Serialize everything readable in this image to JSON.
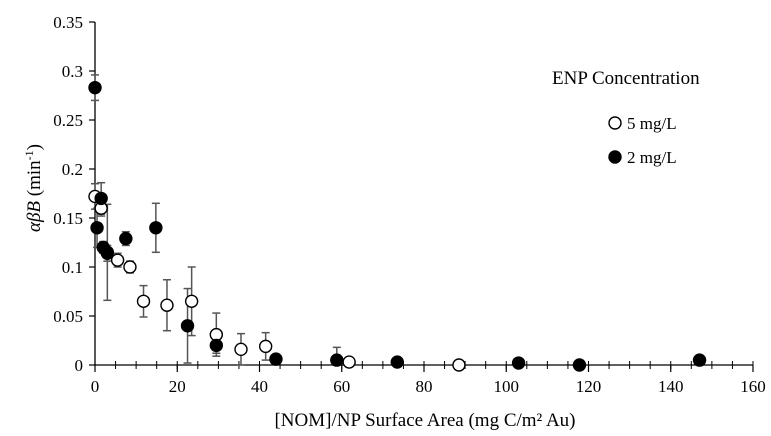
{
  "chart_data": {
    "type": "scatter",
    "xlabel": "[NOM]/NP Surface Area (mg C/m² Au)",
    "ylabel": {
      "prefix": "αβB",
      "unit": " (min",
      "sup": "-1",
      "suffix": ")"
    },
    "xlim": [
      0,
      160
    ],
    "ylim": [
      0,
      0.35
    ],
    "x_ticks": [
      "0",
      "20",
      "40",
      "60",
      "80",
      "100",
      "120",
      "140",
      "160"
    ],
    "y_ticks": [
      "0",
      "0.05",
      "0.1",
      "0.15",
      "0.2",
      "0.25",
      "0.3",
      "0.35"
    ],
    "grid": false,
    "legend": {
      "title": "ENP Concentration",
      "position": "top-right"
    },
    "series": [
      {
        "name": "5 mg/L",
        "marker": "open-circle",
        "color": "#000000",
        "points": [
          {
            "x": 0.0,
            "y": 0.172,
            "err": 0.013
          },
          {
            "x": 1.5,
            "y": 0.16,
            "err": 0.008
          },
          {
            "x": 3.0,
            "y": 0.114,
            "err": 0.008
          },
          {
            "x": 5.5,
            "y": 0.107,
            "err": 0.007
          },
          {
            "x": 8.5,
            "y": 0.1,
            "err": 0.006
          },
          {
            "x": 11.8,
            "y": 0.065,
            "err": 0.016
          },
          {
            "x": 17.5,
            "y": 0.061,
            "err": 0.026
          },
          {
            "x": 23.5,
            "y": 0.065,
            "err": 0.035
          },
          {
            "x": 29.5,
            "y": 0.031,
            "err": 0.022
          },
          {
            "x": 35.5,
            "y": 0.016,
            "err": 0.016
          },
          {
            "x": 41.5,
            "y": 0.019,
            "err": 0.014
          },
          {
            "x": 61.8,
            "y": 0.003,
            "err": 0.0
          },
          {
            "x": 88.5,
            "y": 0.0,
            "err": 0.0
          }
        ]
      },
      {
        "name": "2 mg/L",
        "marker": "filled-circle",
        "color": "#000000",
        "points": [
          {
            "x": 0.0,
            "y": 0.283,
            "err": 0.013
          },
          {
            "x": 0.5,
            "y": 0.14,
            "err": 0.02
          },
          {
            "x": 1.5,
            "y": 0.17,
            "err": 0.016
          },
          {
            "x": 2.0,
            "y": 0.12,
            "err": 0.006
          },
          {
            "x": 3.0,
            "y": 0.115,
            "err": 0.049
          },
          {
            "x": 7.5,
            "y": 0.129,
            "err": 0.007
          },
          {
            "x": 14.8,
            "y": 0.14,
            "err": 0.025
          },
          {
            "x": 22.5,
            "y": 0.04,
            "err": 0.038
          },
          {
            "x": 29.5,
            "y": 0.02,
            "err": 0.008
          },
          {
            "x": 44.0,
            "y": 0.006,
            "err": 0.0
          },
          {
            "x": 58.8,
            "y": 0.005,
            "err": 0.013
          },
          {
            "x": 73.5,
            "y": 0.003,
            "err": 0.0
          },
          {
            "x": 103.0,
            "y": 0.002,
            "err": 0.0
          },
          {
            "x": 117.8,
            "y": 0.0,
            "err": 0.0
          },
          {
            "x": 147.0,
            "y": 0.005,
            "err": 0.0
          }
        ]
      }
    ]
  }
}
